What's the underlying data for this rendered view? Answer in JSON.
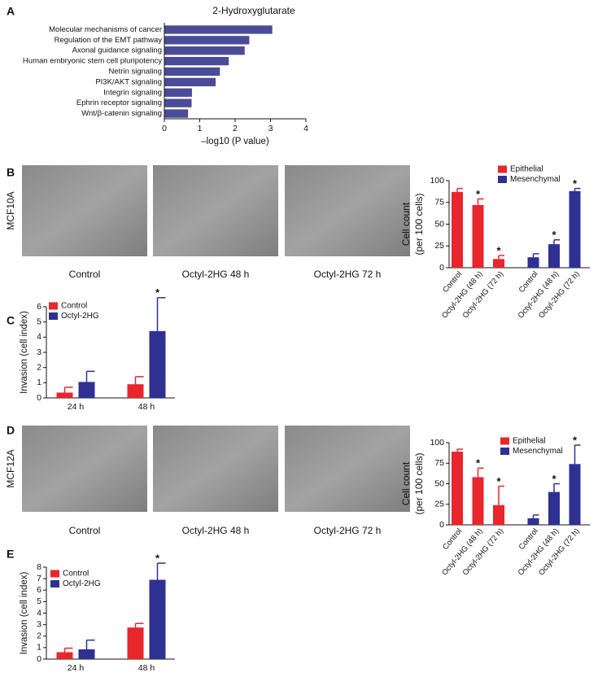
{
  "chart_data": [
    {
      "panel": "A",
      "type": "barh",
      "title": "2-Hydroxyglutarate",
      "categories": [
        "Molecular mechanisms of cancer",
        "Regulation of the EMT pathway",
        "Axonal guidance signaling",
        "Human embryonic stem cell pluripotency",
        "Netrin signaling",
        "PI3K/AKT signaling",
        "Integrin signaling",
        "Ephrin receptor signaling",
        "Wnt/β-catenin signaling"
      ],
      "values": [
        3.05,
        2.4,
        2.27,
        1.82,
        1.57,
        1.45,
        0.78,
        0.77,
        0.67
      ],
      "color": "#4b4b97",
      "xlim": [
        0,
        4
      ],
      "xticks": [
        0,
        1,
        2,
        3,
        4
      ],
      "xlabel": "–log10 (P value)"
    },
    {
      "panel": "B",
      "type": "bar",
      "images": {
        "row_label": "MCF10A",
        "captions": [
          "Control",
          "Octyl-2HG 48 h",
          "Octyl-2HG 72 h"
        ]
      },
      "categories": [
        "Control",
        "Octyl-2HG (48 h)",
        "Octyl-2HG (72 h)",
        "Control",
        "Octyl-2HG (48 h)",
        "Octyl-2HG (72 h)"
      ],
      "series": [
        {
          "name": "Epithelial",
          "color": "#e8262b",
          "values": [
            87,
            72,
            10,
            null,
            null,
            null
          ],
          "errors": [
            4,
            7,
            4,
            null,
            null,
            null
          ],
          "significance": [
            null,
            "*",
            "*",
            null,
            null,
            null
          ]
        },
        {
          "name": "Mesenchymal",
          "color": "#2e3192",
          "values": [
            null,
            null,
            null,
            12,
            27,
            88
          ],
          "errors": [
            null,
            null,
            null,
            4,
            5,
            3
          ],
          "significance": [
            null,
            null,
            null,
            null,
            "*",
            "*"
          ]
        }
      ],
      "ylim": [
        0,
        100
      ],
      "yticks": [
        0,
        25,
        50,
        75,
        100
      ],
      "ylabel": [
        "Cell count",
        "(per 100 cells)"
      ]
    },
    {
      "panel": "C",
      "type": "bar",
      "categories": [
        "24 h",
        "48 h"
      ],
      "series": [
        {
          "name": "Control",
          "color": "#e8262b",
          "values": [
            0.35,
            0.9
          ],
          "errors": [
            0.35,
            0.5
          ],
          "significance": [
            null,
            null
          ]
        },
        {
          "name": "Octyl-2HG",
          "color": "#2e3192",
          "values": [
            1.05,
            4.4
          ],
          "errors": [
            0.7,
            2.2
          ],
          "significance": [
            null,
            "*"
          ]
        }
      ],
      "ylim": [
        0,
        6
      ],
      "yticks": [
        0,
        1,
        2,
        3,
        4,
        5,
        6
      ],
      "ylabel": "Invasion (cell index)"
    },
    {
      "panel": "D",
      "type": "bar",
      "images": {
        "row_label": "MCF12A",
        "captions": [
          "Control",
          "Octyl-2HG 48 h",
          "Octyl-2HG 72 h"
        ]
      },
      "categories": [
        "Control",
        "Octyl-2HG (48 h)",
        "Octyl-2HG (72 h)",
        "Control",
        "Octyl-2HG (48 h)",
        "Octyl-2HG (72 h)"
      ],
      "series": [
        {
          "name": "Epithelial",
          "color": "#e8262b",
          "values": [
            89,
            58,
            24,
            null,
            null,
            null
          ],
          "errors": [
            3,
            11,
            23,
            null,
            null,
            null
          ],
          "significance": [
            null,
            "*",
            "*",
            null,
            null,
            null
          ]
        },
        {
          "name": "Mesenchymal",
          "color": "#2e3192",
          "values": [
            null,
            null,
            null,
            8,
            40,
            74
          ],
          "errors": [
            null,
            null,
            null,
            4,
            10,
            23
          ],
          "significance": [
            null,
            null,
            null,
            null,
            "*",
            "*"
          ]
        }
      ],
      "ylim": [
        0,
        100
      ],
      "yticks": [
        0,
        25,
        50,
        75,
        100
      ],
      "ylabel": [
        "Cell count",
        "(per 100 cells)"
      ]
    },
    {
      "panel": "E",
      "type": "bar",
      "categories": [
        "24 h",
        "48 h"
      ],
      "series": [
        {
          "name": "Control",
          "color": "#e8262b",
          "values": [
            0.6,
            2.75
          ],
          "errors": [
            0.35,
            0.35
          ],
          "significance": [
            null,
            null
          ]
        },
        {
          "name": "Octyl-2HG",
          "color": "#2e3192",
          "values": [
            0.85,
            6.9
          ],
          "errors": [
            0.8,
            1.45
          ],
          "significance": [
            null,
            "*"
          ]
        }
      ],
      "ylim": [
        0,
        8
      ],
      "yticks": [
        0,
        1,
        2,
        3,
        4,
        5,
        6,
        7,
        8
      ],
      "ylabel": "Invasion (cell index)"
    }
  ]
}
